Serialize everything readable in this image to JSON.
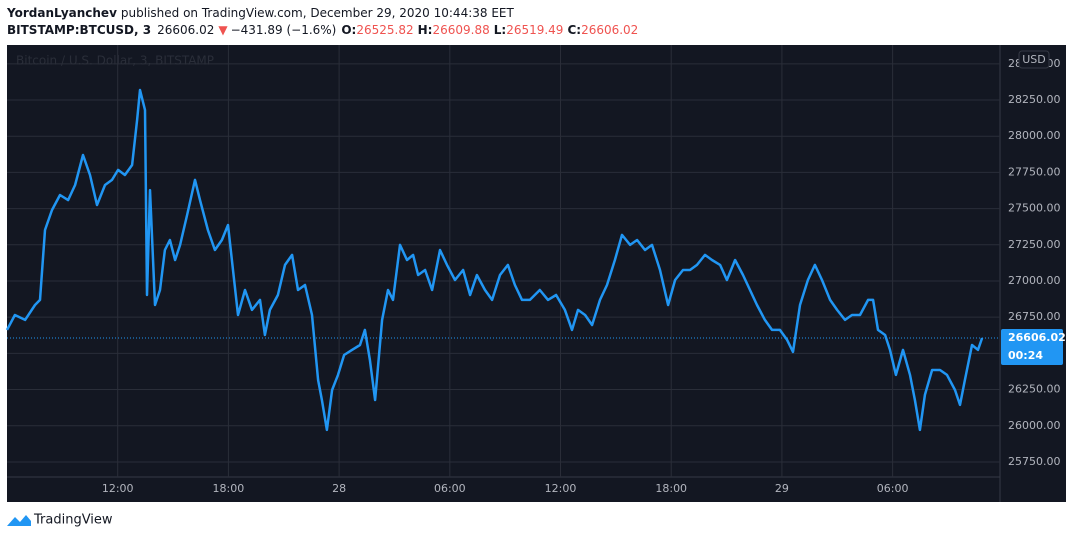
{
  "header": {
    "author": "YordanLyanchev",
    "published": "published on TradingView.com, December 29, 2020 10:44:38 EET",
    "symbol": "BITSTAMP:BTCUSD, 3",
    "price": 26606.02,
    "change": "−431.89 (−1.6%)",
    "ohlc": [
      {
        "label": "O:",
        "value": 26525.82
      },
      {
        "label": "H:",
        "value": 26609.88
      },
      {
        "label": "L:",
        "value": 26519.49
      },
      {
        "label": "C:",
        "value": 26606.02
      }
    ]
  },
  "chart_data": {
    "type": "line",
    "watermark": "Bitcoin / U.S. Dollar, 3, BITSTAMP",
    "currency": "USD",
    "countdown": "00:24",
    "grid": true,
    "x": [
      6.0,
      6.43,
      6.98,
      7.52,
      7.79,
      8.06,
      8.44,
      8.87,
      9.31,
      9.69,
      10.12,
      10.5,
      10.88,
      11.31,
      11.69,
      12.02,
      12.39,
      12.78,
      13.05,
      13.21,
      13.48,
      13.59,
      13.75,
      14.02,
      14.29,
      14.56,
      14.83,
      15.11,
      15.38,
      15.76,
      16.19,
      16.46,
      16.89,
      17.27,
      17.65,
      17.98,
      18.25,
      18.52,
      18.9,
      19.28,
      19.71,
      19.98,
      20.25,
      20.68,
      21.07,
      21.45,
      21.77,
      22.15,
      22.53,
      22.86,
      23.07,
      23.34,
      23.62,
      23.94,
      24.27,
      24.7,
      25.13,
      25.4,
      25.67,
      25.95,
      26.33,
      26.65,
      26.92,
      27.3,
      27.68,
      28.01,
      28.28,
      28.66,
      29.04,
      29.47,
      29.85,
      30.28,
      30.72,
      31.1,
      31.47,
      31.91,
      32.29,
      32.72,
      33.15,
      33.53,
      33.91,
      34.34,
      34.88,
      35.32,
      35.76,
      36.24,
      36.62,
      36.95,
      37.33,
      37.71,
      38.14,
      38.52,
      38.95,
      39.33,
      39.77,
      40.15,
      40.58,
      40.96,
      41.39,
      41.83,
      42.21,
      42.64,
      43.02,
      43.4,
      43.83,
      44.21,
      44.65,
      45.02,
      45.46,
      45.89,
      46.27,
      46.65,
      47.08,
      47.46,
      47.89,
      48.28,
      48.6,
      48.98,
      49.41,
      49.79,
      50.17,
      50.61,
      50.99,
      51.42,
      51.8,
      52.23,
      52.67,
      52.94,
      53.21,
      53.59,
      53.86,
      54.18,
      54.56,
      54.94,
      55.21,
      55.48,
      55.75,
      56.14,
      56.57,
      56.95,
      57.38,
      57.65,
      57.92,
      58.3,
      58.63,
      58.85
    ],
    "series": [
      {
        "name": "BITSTAMP:BTCUSD",
        "color": "#2196f3",
        "values": [
          26662,
          26765,
          26731,
          26834,
          26869,
          27352,
          27490,
          27594,
          27559,
          27663,
          27870,
          27732,
          27525,
          27663,
          27698,
          27767,
          27732,
          27801,
          28112,
          28319,
          28181,
          26903,
          27628,
          26834,
          26938,
          27214,
          27283,
          27145,
          27249,
          27456,
          27698,
          27559,
          27352,
          27214,
          27283,
          27387,
          27076,
          26765,
          26938,
          26800,
          26869,
          26627,
          26800,
          26903,
          27111,
          27180,
          26938,
          26972,
          26765,
          26316,
          26178,
          25971,
          26247,
          26351,
          26489,
          26524,
          26558,
          26662,
          26454,
          26178,
          26731,
          26938,
          26869,
          27249,
          27145,
          27180,
          27041,
          27076,
          26938,
          27214,
          27111,
          27007,
          27076,
          26903,
          27041,
          26938,
          26869,
          27041,
          27111,
          26972,
          26869,
          26869,
          26938,
          26869,
          26903,
          26800,
          26662,
          26800,
          26765,
          26696,
          26869,
          26972,
          27145,
          27318,
          27249,
          27283,
          27214,
          27249,
          27076,
          26834,
          27007,
          27076,
          27076,
          27111,
          27180,
          27145,
          27111,
          27007,
          27145,
          27041,
          26938,
          26834,
          26731,
          26662,
          26662,
          26593,
          26510,
          26834,
          27007,
          27111,
          27007,
          26869,
          26800,
          26731,
          26765,
          26765,
          26869,
          26869,
          26662,
          26627,
          26524,
          26351,
          26524,
          26351,
          26178,
          25971,
          26213,
          26385,
          26385,
          26351,
          26247,
          26144,
          26316,
          26558,
          26524,
          26606.02
        ]
      }
    ],
    "xlim": [
      6,
      59.82
    ],
    "xticks": [
      {
        "value": 12,
        "label": "12:00"
      },
      {
        "value": 18,
        "label": "18:00"
      },
      {
        "value": 24,
        "label": "28"
      },
      {
        "value": 30,
        "label": "06:00"
      },
      {
        "value": 36,
        "label": "12:00"
      },
      {
        "value": 42,
        "label": "18:00"
      },
      {
        "value": 48,
        "label": "29"
      },
      {
        "value": 54,
        "label": "06:00"
      }
    ],
    "ylim": [
      25646,
      28630
    ],
    "yticks": [
      {
        "value": 25750,
        "label": "25750.00"
      },
      {
        "value": 26000,
        "label": "26000.00"
      },
      {
        "value": 26250,
        "label": "26250.00"
      },
      {
        "value": 26500,
        "label": "26500.00"
      },
      {
        "value": 26750,
        "label": "26750.00"
      },
      {
        "value": 27000,
        "label": "27000.00"
      },
      {
        "value": 27250,
        "label": "27250.00"
      },
      {
        "value": 27500,
        "label": "27500.00"
      },
      {
        "value": 27750,
        "label": "27750.00"
      },
      {
        "value": 28000,
        "label": "28000.00"
      },
      {
        "value": 28250,
        "label": "28250.00"
      },
      {
        "value": 28500,
        "label": "28500.00"
      }
    ]
  },
  "footer": {
    "brand": "TradingView"
  }
}
